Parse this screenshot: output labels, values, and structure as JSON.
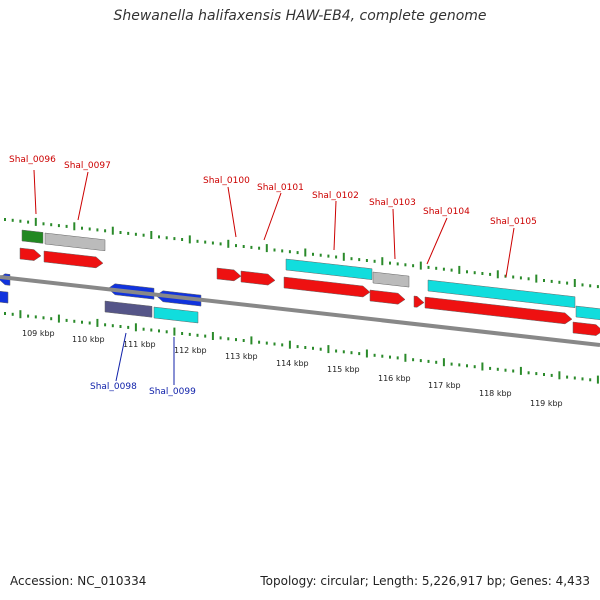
{
  "title": "Shewanella halifaxensis HAW-EB4, complete genome",
  "footer": {
    "accession": "Accession: NC_010334",
    "topology": "Topology: circular; Length: 5,226,917 bp; Genes: 4,433"
  },
  "scale": {
    "unit": "kbp",
    "ticks": [
      "109 kbp",
      "110 kbp",
      "111 kbp",
      "112 kbp",
      "113 kbp",
      "114 kbp",
      "115 kbp",
      "116 kbp",
      "117 kbp",
      "118 kbp",
      "119 kbp"
    ]
  },
  "colors": {
    "backbone": "#888888",
    "tick_dot": "#2a8a2a",
    "forward_gene": "#ee1111",
    "reverse_gene": "#1133dd",
    "forward_label": "#cc0000",
    "reverse_label": "#1122aa",
    "rna": "#11dddd",
    "gray_feature": "#bbbbbb",
    "green_feature": "#228822",
    "dark_feature": "#555588"
  },
  "labels": {
    "forward": [
      "Shal_0096",
      "Shal_0097",
      "Shal_0100",
      "Shal_0101",
      "Shal_0102",
      "Shal_0103",
      "Shal_0104",
      "Shal_0105"
    ],
    "reverse": [
      "Shal_0098",
      "Shal_0099"
    ]
  }
}
